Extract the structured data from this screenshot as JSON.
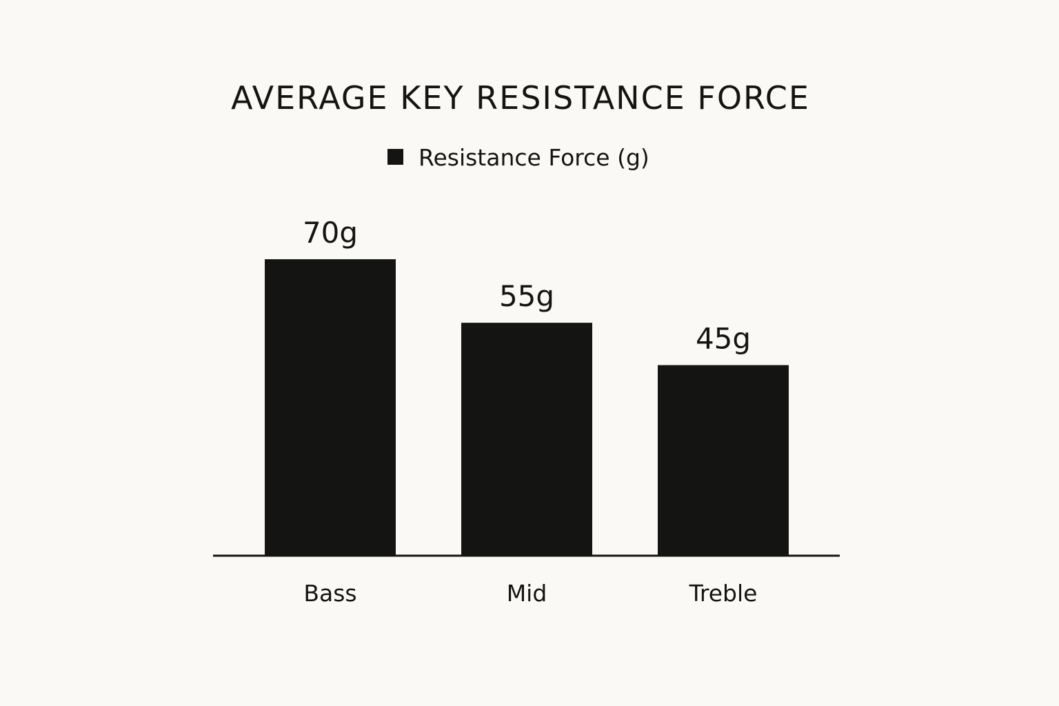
{
  "chart_data": {
    "type": "bar",
    "title": "AVERAGE KEY RESISTANCE FORCE",
    "xlabel": "",
    "ylabel": "",
    "categories": [
      "Bass",
      "Mid",
      "Treble"
    ],
    "series": [
      {
        "name": "Resistance Force (g)",
        "values": [
          70,
          55,
          45
        ],
        "data_labels": [
          "70g",
          "55g",
          "45g"
        ],
        "color": "#141412"
      }
    ],
    "ylim": [
      0,
      70
    ],
    "grid": false,
    "legend": "top-center"
  }
}
